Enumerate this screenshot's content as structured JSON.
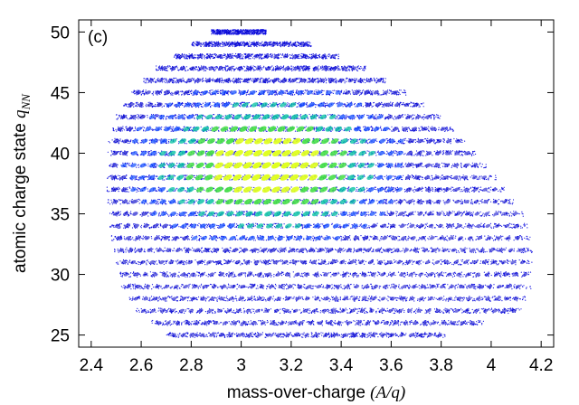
{
  "chart_data": {
    "type": "scatter",
    "panel_label": "(c)",
    "xlabel_prefix": "mass-over-charge ",
    "xlabel_italic": "(A/q)",
    "ylabel_prefix": "atomic charge state ",
    "ylabel_italic": "q",
    "ylabel_subscript": "NN",
    "xlim": [
      2.35,
      4.25
    ],
    "ylim": [
      24,
      51
    ],
    "x_ticks": [
      "2.4",
      "2.6",
      "2.8",
      "3",
      "3.2",
      "3.4",
      "3.6",
      "3.8",
      "4",
      "4.2"
    ],
    "x_tick_values": [
      2.4,
      2.6,
      2.8,
      3.0,
      3.2,
      3.4,
      3.6,
      3.8,
      4.0,
      4.2
    ],
    "y_ticks": [
      "25",
      "30",
      "35",
      "40",
      "45",
      "50"
    ],
    "y_tick_values": [
      25,
      30,
      35,
      40,
      45,
      50
    ],
    "grid": false,
    "point_color": "#1010e0",
    "density_colormap": [
      "#0000c8",
      "#0040ff",
      "#00c0a0",
      "#40e040",
      "#e0ff20"
    ],
    "charge_states": {
      "min": 25,
      "max": 50
    },
    "envelope": {
      "q": [
        25,
        27,
        29,
        31,
        33,
        35,
        38,
        41,
        43,
        45,
        47,
        49,
        50
      ],
      "x_min": [
        2.7,
        2.58,
        2.52,
        2.5,
        2.48,
        2.47,
        2.46,
        2.47,
        2.5,
        2.56,
        2.66,
        2.8,
        2.88
      ],
      "x_max": [
        3.82,
        4.12,
        4.16,
        4.17,
        4.16,
        4.13,
        4.02,
        3.9,
        3.8,
        3.66,
        3.5,
        3.28,
        3.1
      ]
    },
    "density_peak": {
      "x": 3.1,
      "q": 39
    },
    "annotations": []
  }
}
